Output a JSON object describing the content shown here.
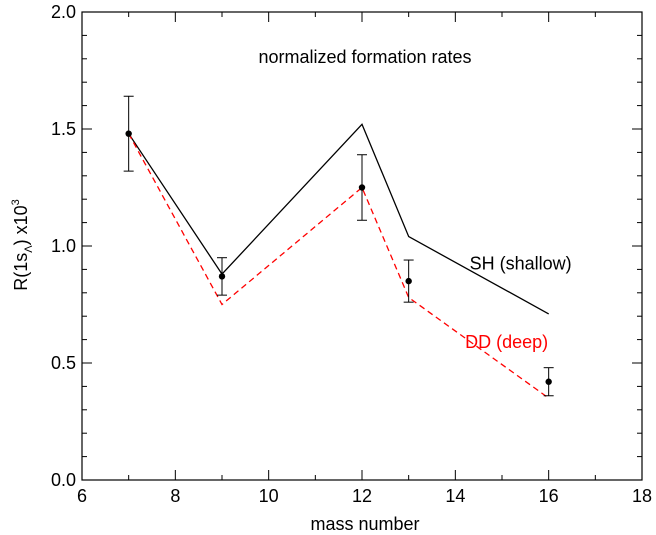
{
  "chart_data": {
    "type": "scatter",
    "title": "normalized formation rates",
    "xlabel": "mass number",
    "ylabel": {
      "main": "R(1s",
      "sub": "Λ",
      "mid": ") x10",
      "sup": "3"
    },
    "xlim": [
      6,
      18
    ],
    "ylim": [
      0.0,
      2.0
    ],
    "x_ticks": [
      6,
      8,
      10,
      12,
      14,
      16,
      18
    ],
    "y_ticks": [
      0.0,
      0.5,
      1.0,
      1.5,
      2.0
    ],
    "x_tick_labels": [
      "6",
      "8",
      "10",
      "12",
      "14",
      "16",
      "18"
    ],
    "y_tick_labels": [
      "0.0",
      "0.5",
      "1.0",
      "1.5",
      "2.0"
    ],
    "grid": false,
    "series": [
      {
        "name": "SH (shallow)",
        "kind": "line",
        "color": "#000000",
        "style": "solid",
        "x": [
          7,
          9,
          12,
          13,
          16
        ],
        "y": [
          1.48,
          0.88,
          1.52,
          1.04,
          0.71
        ]
      },
      {
        "name": "DD (deep)",
        "kind": "line",
        "color": "#ff0000",
        "style": "dashed",
        "x": [
          7,
          9,
          12,
          13,
          16
        ],
        "y": [
          1.48,
          0.75,
          1.25,
          0.78,
          0.35
        ]
      },
      {
        "name": "data",
        "kind": "points",
        "color": "#000000",
        "x": [
          7,
          9,
          12,
          13,
          16
        ],
        "y": [
          1.48,
          0.87,
          1.25,
          0.85,
          0.42
        ],
        "err_low": [
          0.16,
          0.08,
          0.14,
          0.09,
          0.06
        ],
        "err_high": [
          0.16,
          0.08,
          0.14,
          0.09,
          0.06
        ]
      }
    ],
    "annotations": [
      {
        "text": "SH (shallow)",
        "color": "#000000",
        "x": 15.4,
        "y": 0.925
      },
      {
        "text": "DD (deep)",
        "color": "#ff0000",
        "x": 15.1,
        "y": 0.59
      }
    ]
  }
}
